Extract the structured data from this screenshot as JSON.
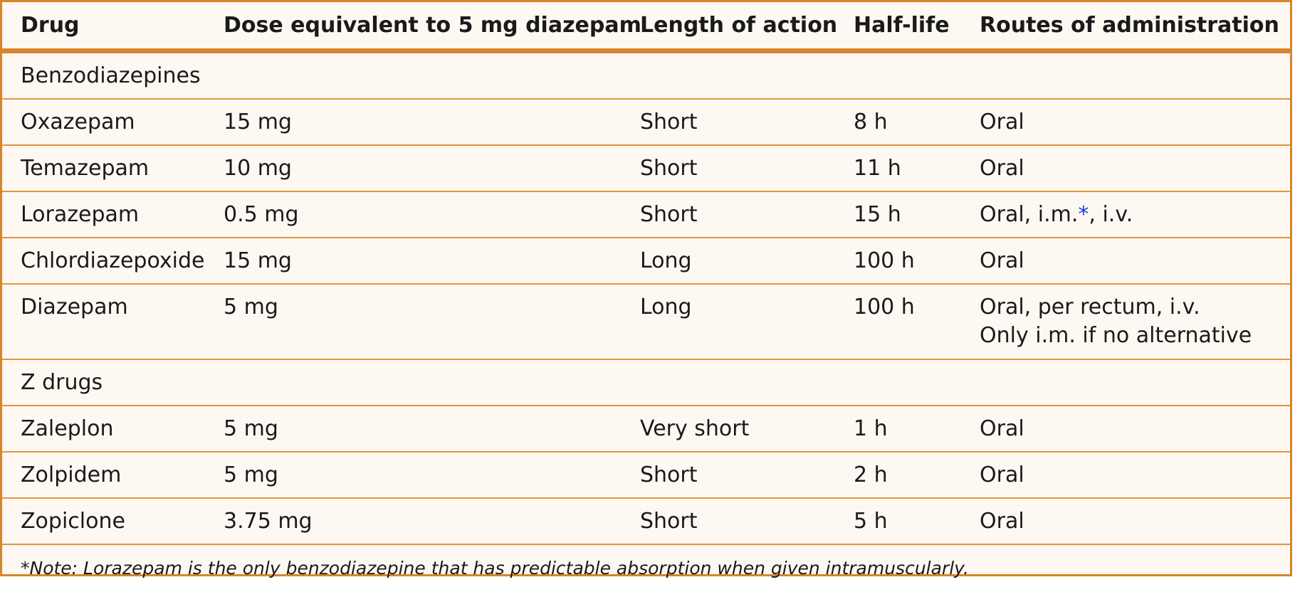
{
  "columns": [
    "Drug",
    "Dose equivalent to 5 mg diazepam",
    "Length of action",
    "Half-life",
    "Routes of administration"
  ],
  "sections": [
    {
      "title": "Benzodiazepines",
      "rows": [
        {
          "drug": "Oxazepam",
          "dose": "15 mg",
          "length": "Short",
          "half_life": "8 h",
          "routes": "Oral"
        },
        {
          "drug": "Temazepam",
          "dose": "10 mg",
          "length": "Short",
          "half_life": "11 h",
          "routes": "Oral"
        },
        {
          "drug": "Lorazepam",
          "dose": "0.5 mg",
          "length": "Short",
          "half_life": "15 h",
          "routes_prefix": "Oral, i.m.",
          "routes_mark": "*",
          "routes_suffix": ", i.v."
        },
        {
          "drug": "Chlordiazepoxide",
          "dose": "15 mg",
          "length": "Long",
          "half_life": "100 h",
          "routes": "Oral"
        },
        {
          "drug": "Diazepam",
          "dose": "5 mg",
          "length": "Long",
          "half_life": "100 h",
          "routes_line1": "Oral, per rectum, i.v.",
          "routes_line2": "Only i.m. if no alternative"
        }
      ]
    },
    {
      "title": "Z drugs",
      "rows": [
        {
          "drug": "Zaleplon",
          "dose": "5 mg",
          "length": "Very short",
          "half_life": "1 h",
          "routes": "Oral"
        },
        {
          "drug": "Zolpidem",
          "dose": "5 mg",
          "length": "Short",
          "half_life": "2 h",
          "routes": "Oral"
        },
        {
          "drug": "Zopiclone",
          "dose": "3.75 mg",
          "length": "Short",
          "half_life": "5 h",
          "routes": "Oral"
        }
      ]
    }
  ],
  "note": "*Note: Lorazepam is the only benzodiazepine that has predictable absorption when given intramuscularly.",
  "colors": {
    "border": "#d9832a",
    "background": "#fdf8f2",
    "asterisk": "#1a3fd6"
  }
}
